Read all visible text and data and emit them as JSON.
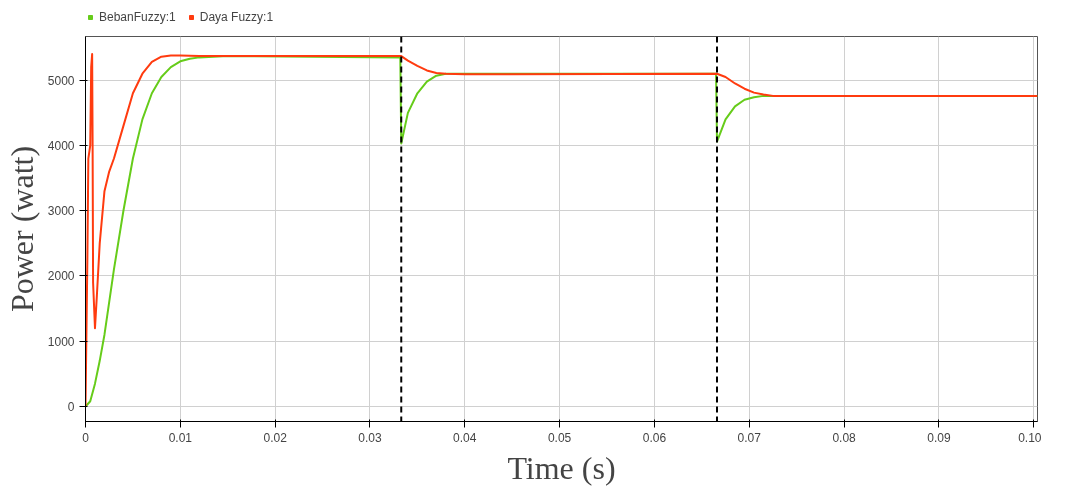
{
  "chart_data": {
    "type": "line",
    "xlabel": "Time (s)",
    "ylabel": "Power (watt)",
    "xlim": [
      0,
      0.1004
    ],
    "ylim": [
      -230,
      5670
    ],
    "xticks": [
      0,
      0.01,
      0.02,
      0.03,
      0.04,
      0.05,
      0.06,
      0.07,
      0.08,
      0.09,
      {
        "value": 0.1,
        "label": "0.10"
      }
    ],
    "yticks": [
      0,
      1000,
      2000,
      3000,
      4000,
      5000
    ],
    "grid": true,
    "legend": "top left",
    "series": [
      {
        "name": "BebanFuzzy:1",
        "color": "#66cc1a",
        "x": [
          0,
          0.0005,
          0.001,
          0.0015,
          0.002,
          0.003,
          0.004,
          0.005,
          0.006,
          0.007,
          0.008,
          0.009,
          0.01,
          0.011,
          0.012,
          0.015,
          0.0332,
          0.0333,
          0.034,
          0.035,
          0.036,
          0.037,
          0.038,
          0.04,
          0.0665,
          0.0666,
          0.0675,
          0.0685,
          0.0695,
          0.0705,
          0.0715,
          0.08,
          0.1004
        ],
        "values": [
          0,
          80,
          350,
          700,
          1100,
          2100,
          3000,
          3800,
          4400,
          4800,
          5050,
          5200,
          5290,
          5330,
          5350,
          5370,
          5350,
          4030,
          4500,
          4800,
          4980,
          5070,
          5100,
          5100,
          5100,
          4060,
          4400,
          4600,
          4700,
          4740,
          4760,
          4760,
          4760
        ]
      },
      {
        "name": "Daya Fuzzy:1",
        "color": "#ff3b0f",
        "x": [
          0,
          0.0002,
          0.0003,
          0.0005,
          0.0006,
          0.0007,
          0.00075,
          0.0008,
          0.001,
          0.0012,
          0.0015,
          0.002,
          0.0025,
          0.003,
          0.004,
          0.005,
          0.006,
          0.007,
          0.008,
          0.009,
          0.01,
          0.012,
          0.0333,
          0.034,
          0.035,
          0.036,
          0.037,
          0.038,
          0.04,
          0.0666,
          0.0675,
          0.0685,
          0.0695,
          0.0705,
          0.0715,
          0.0725,
          0.08,
          0.1004
        ],
        "values": [
          0,
          2300,
          3800,
          4000,
          5200,
          5400,
          4000,
          1900,
          1200,
          1700,
          2500,
          3300,
          3600,
          3800,
          4300,
          4800,
          5100,
          5280,
          5360,
          5380,
          5380,
          5370,
          5370,
          5300,
          5220,
          5150,
          5110,
          5100,
          5090,
          5100,
          5050,
          4950,
          4870,
          4810,
          4780,
          4760,
          4760,
          4760
        ]
      }
    ],
    "ref_lines": [
      {
        "axis": "x",
        "value": 0.0333,
        "label": null,
        "color": "#000000",
        "line_style": "dashed"
      },
      {
        "axis": "x",
        "value": 0.0666,
        "label": null,
        "color": "#000000",
        "line_style": "dashed"
      }
    ]
  }
}
